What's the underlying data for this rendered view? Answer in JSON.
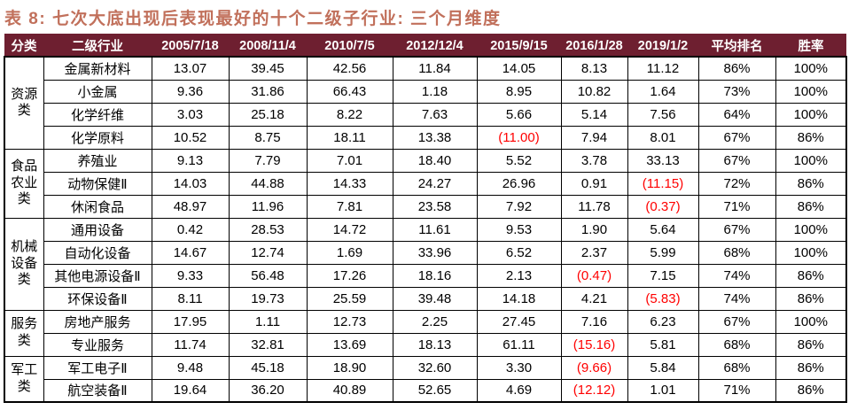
{
  "page": {
    "title": "表 8: 七次大底出现后表现最好的十个二级子行业: 三个月维度"
  },
  "colors": {
    "title": "#C1705B",
    "header_background": "#6E1F30",
    "header_text": "#FFFFFF",
    "negative_value": "#FF0000",
    "body_text": "#000000",
    "border": "#000000"
  },
  "table": {
    "columns": [
      "分类",
      "二级行业",
      "2005/7/18",
      "2008/11/4",
      "2010/7/5",
      "2012/12/4",
      "2015/9/15",
      "2016/1/28",
      "2019/1/2",
      "平均排名",
      "胜率"
    ],
    "groups": [
      {
        "category": "资源类",
        "rows": [
          {
            "industry": "金属新材料",
            "values": [
              "13.07",
              "39.45",
              "42.56",
              "11.84",
              "14.05",
              "8.13",
              "11.12"
            ],
            "avg_rank": "86%",
            "win_rate": "100%"
          },
          {
            "industry": "小金属",
            "values": [
              "9.36",
              "31.86",
              "66.43",
              "1.18",
              "8.95",
              "10.82",
              "1.64"
            ],
            "avg_rank": "73%",
            "win_rate": "100%"
          },
          {
            "industry": "化学纤维",
            "values": [
              "3.03",
              "25.18",
              "8.22",
              "7.63",
              "5.66",
              "5.14",
              "7.56"
            ],
            "avg_rank": "64%",
            "win_rate": "100%"
          },
          {
            "industry": "化学原料",
            "values": [
              "10.52",
              "8.75",
              "18.11",
              "13.38",
              "(11.00)",
              "7.94",
              "8.01"
            ],
            "avg_rank": "67%",
            "win_rate": "86%"
          }
        ]
      },
      {
        "category": "食品农业类",
        "rows": [
          {
            "industry": "养殖业",
            "values": [
              "9.13",
              "7.79",
              "7.01",
              "18.40",
              "5.52",
              "3.78",
              "33.13"
            ],
            "avg_rank": "67%",
            "win_rate": "100%"
          },
          {
            "industry": "动物保健Ⅱ",
            "values": [
              "14.03",
              "44.88",
              "14.33",
              "24.27",
              "26.96",
              "0.91",
              "(11.15)"
            ],
            "avg_rank": "72%",
            "win_rate": "86%"
          },
          {
            "industry": "休闲食品",
            "values": [
              "48.97",
              "11.96",
              "7.81",
              "23.58",
              "7.92",
              "11.78",
              "(0.37)"
            ],
            "avg_rank": "71%",
            "win_rate": "86%"
          }
        ]
      },
      {
        "category": "机械设备类",
        "rows": [
          {
            "industry": "通用设备",
            "values": [
              "0.42",
              "28.53",
              "14.72",
              "11.61",
              "9.53",
              "1.90",
              "5.64"
            ],
            "avg_rank": "67%",
            "win_rate": "100%"
          },
          {
            "industry": "自动化设备",
            "values": [
              "14.67",
              "12.74",
              "1.69",
              "33.96",
              "6.52",
              "2.37",
              "5.99"
            ],
            "avg_rank": "68%",
            "win_rate": "100%"
          },
          {
            "industry": "其他电源设备Ⅱ",
            "values": [
              "9.33",
              "56.48",
              "17.26",
              "18.16",
              "2.13",
              "(0.47)",
              "7.15"
            ],
            "avg_rank": "74%",
            "win_rate": "86%"
          },
          {
            "industry": "环保设备Ⅱ",
            "values": [
              "8.11",
              "19.73",
              "25.59",
              "39.48",
              "14.18",
              "4.21",
              "(5.83)"
            ],
            "avg_rank": "74%",
            "win_rate": "86%"
          }
        ]
      },
      {
        "category": "服务类",
        "rows": [
          {
            "industry": "房地产服务",
            "values": [
              "17.95",
              "1.11",
              "12.73",
              "2.25",
              "27.45",
              "7.16",
              "6.23"
            ],
            "avg_rank": "67%",
            "win_rate": "100%"
          },
          {
            "industry": "专业服务",
            "values": [
              "11.74",
              "32.81",
              "13.69",
              "18.13",
              "61.11",
              "(15.16)",
              "5.81"
            ],
            "avg_rank": "68%",
            "win_rate": "86%"
          }
        ]
      },
      {
        "category": "军工类",
        "rows": [
          {
            "industry": "军工电子Ⅱ",
            "values": [
              "9.48",
              "45.18",
              "18.90",
              "32.60",
              "3.30",
              "(9.66)",
              "5.84"
            ],
            "avg_rank": "68%",
            "win_rate": "86%"
          },
          {
            "industry": "航空装备Ⅱ",
            "values": [
              "19.64",
              "36.20",
              "40.89",
              "52.65",
              "4.69",
              "(12.12)",
              "1.01"
            ],
            "avg_rank": "71%",
            "win_rate": "86%"
          }
        ]
      }
    ]
  }
}
